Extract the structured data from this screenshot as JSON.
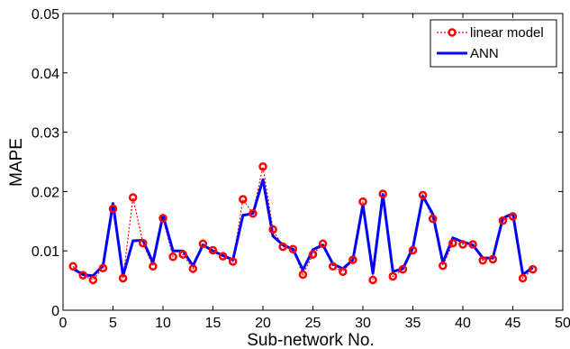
{
  "chart_data": {
    "type": "line",
    "title": "",
    "xlabel": "Sub-network No.",
    "ylabel": "MAPE",
    "xlim": [
      0,
      50
    ],
    "ylim": [
      0,
      0.05
    ],
    "xticks": [
      0,
      5,
      10,
      15,
      20,
      25,
      30,
      35,
      40,
      45,
      50
    ],
    "xtick_labels": [
      "0",
      "5",
      "10",
      "15",
      "20",
      "25",
      "30",
      "35",
      "40",
      "45",
      "50"
    ],
    "yticks": [
      0,
      0.01,
      0.02,
      0.03,
      0.04,
      0.05
    ],
    "ytick_labels": [
      "0",
      "0.01",
      "0.02",
      "0.03",
      "0.04",
      "0.05"
    ],
    "grid": false,
    "legend_position": "top-right",
    "x": [
      1,
      2,
      3,
      4,
      5,
      6,
      7,
      8,
      9,
      10,
      11,
      12,
      13,
      14,
      15,
      16,
      17,
      18,
      19,
      20,
      21,
      22,
      23,
      24,
      25,
      26,
      27,
      28,
      29,
      30,
      31,
      32,
      33,
      34,
      35,
      36,
      37,
      38,
      39,
      40,
      41,
      42,
      43,
      44,
      45,
      46,
      47
    ],
    "series": [
      {
        "name": "linear model",
        "color": "#ff0000",
        "style": "dotted line with circle markers",
        "values": [
          0.0074,
          0.0059,
          0.0051,
          0.0071,
          0.0171,
          0.0054,
          0.019,
          0.0113,
          0.0074,
          0.0155,
          0.009,
          0.0094,
          0.007,
          0.0112,
          0.0101,
          0.0091,
          0.0082,
          0.0187,
          0.0163,
          0.0242,
          0.0136,
          0.0107,
          0.0103,
          0.006,
          0.0094,
          0.0112,
          0.0074,
          0.0065,
          0.0085,
          0.0183,
          0.0051,
          0.0196,
          0.0057,
          0.0069,
          0.0101,
          0.0194,
          0.0154,
          0.0075,
          0.0113,
          0.0111,
          0.0111,
          0.0084,
          0.0086,
          0.0151,
          0.0158,
          0.0054,
          0.0069
        ]
      },
      {
        "name": "ANN",
        "color": "#0000ff",
        "style": "solid line",
        "values": [
          0.007,
          0.006,
          0.0058,
          0.0075,
          0.018,
          0.0058,
          0.0117,
          0.0118,
          0.008,
          0.016,
          0.01,
          0.01,
          0.0075,
          0.011,
          0.01,
          0.0092,
          0.0085,
          0.016,
          0.0163,
          0.022,
          0.0125,
          0.011,
          0.0103,
          0.0068,
          0.0102,
          0.011,
          0.0078,
          0.007,
          0.0085,
          0.0178,
          0.0062,
          0.0195,
          0.0065,
          0.007,
          0.0105,
          0.0192,
          0.0162,
          0.008,
          0.0122,
          0.0115,
          0.011,
          0.0088,
          0.0088,
          0.0155,
          0.0163,
          0.006,
          0.0072
        ]
      }
    ]
  }
}
